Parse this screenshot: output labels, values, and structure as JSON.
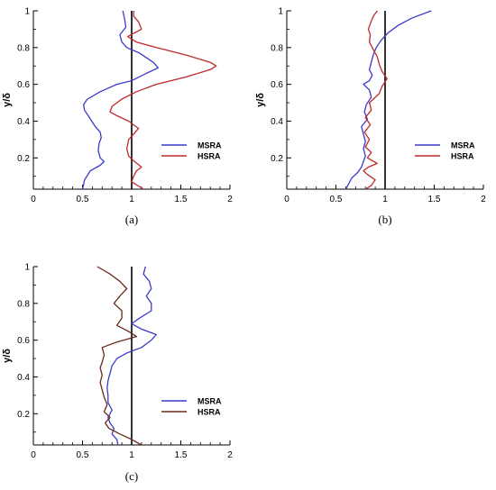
{
  "chart_data": [
    {
      "type": "line",
      "panel": "(a)",
      "ylabel": "y/δ",
      "xlim": [
        0,
        2
      ],
      "ylim": [
        0.03,
        1
      ],
      "xticks": [
        "0",
        "0.5",
        "1",
        "1.5",
        "2"
      ],
      "yticks": [
        "0.2",
        "0.4",
        "0.6",
        "0.8",
        "1"
      ],
      "vline_x": 1,
      "legend_position": "right-center",
      "series": [
        {
          "name": "MSRA",
          "color": "#3a3acc",
          "points": [
            [
              0.5,
              0.03
            ],
            [
              0.52,
              0.08
            ],
            [
              0.58,
              0.13
            ],
            [
              0.68,
              0.16
            ],
            [
              0.72,
              0.18
            ],
            [
              0.68,
              0.2
            ],
            [
              0.66,
              0.24
            ],
            [
              0.67,
              0.28
            ],
            [
              0.69,
              0.31
            ],
            [
              0.68,
              0.34
            ],
            [
              0.63,
              0.37
            ],
            [
              0.57,
              0.42
            ],
            [
              0.52,
              0.46
            ],
            [
              0.51,
              0.49
            ],
            [
              0.55,
              0.52
            ],
            [
              0.68,
              0.56
            ],
            [
              0.85,
              0.6
            ],
            [
              1.0,
              0.62
            ],
            [
              1.15,
              0.66
            ],
            [
              1.27,
              0.69
            ],
            [
              1.22,
              0.72
            ],
            [
              1.08,
              0.77
            ],
            [
              0.95,
              0.8
            ],
            [
              0.9,
              0.83
            ],
            [
              0.88,
              0.87
            ],
            [
              0.94,
              0.91
            ],
            [
              0.93,
              0.95
            ],
            [
              0.91,
              1.0
            ]
          ]
        },
        {
          "name": "HSRA",
          "color": "#c0282c",
          "points": [
            [
              1.12,
              0.03
            ],
            [
              1.0,
              0.07
            ],
            [
              1.02,
              0.1
            ],
            [
              1.05,
              0.13
            ],
            [
              1.1,
              0.15
            ],
            [
              1.03,
              0.18
            ],
            [
              0.97,
              0.21
            ],
            [
              0.95,
              0.25
            ],
            [
              0.97,
              0.3
            ],
            [
              1.02,
              0.33
            ],
            [
              1.07,
              0.36
            ],
            [
              0.97,
              0.4
            ],
            [
              0.85,
              0.43
            ],
            [
              0.78,
              0.45
            ],
            [
              0.8,
              0.48
            ],
            [
              0.9,
              0.52
            ],
            [
              1.05,
              0.56
            ],
            [
              1.25,
              0.6
            ],
            [
              1.55,
              0.64
            ],
            [
              1.8,
              0.68
            ],
            [
              1.86,
              0.7
            ],
            [
              1.8,
              0.72
            ],
            [
              1.55,
              0.76
            ],
            [
              1.25,
              0.8
            ],
            [
              1.05,
              0.83
            ],
            [
              0.96,
              0.86
            ],
            [
              1.1,
              0.9
            ],
            [
              1.07,
              0.94
            ],
            [
              1.02,
              0.97
            ],
            [
              1.02,
              1.0
            ]
          ]
        }
      ]
    },
    {
      "type": "line",
      "panel": "(b)",
      "ylabel": "y/δ",
      "xlim": [
        0,
        2
      ],
      "ylim": [
        0.03,
        1
      ],
      "xticks": [
        "0",
        "0.5",
        "1",
        "1.5",
        "2"
      ],
      "yticks": [
        "0.2",
        "0.4",
        "0.6",
        "0.8",
        "1"
      ],
      "vline_x": 1,
      "legend_position": "right-center",
      "series": [
        {
          "name": "MSRA",
          "color": "#3a3acc",
          "points": [
            [
              0.6,
              0.03
            ],
            [
              0.63,
              0.06
            ],
            [
              0.66,
              0.09
            ],
            [
              0.72,
              0.12
            ],
            [
              0.76,
              0.15
            ],
            [
              0.78,
              0.18
            ],
            [
              0.8,
              0.21
            ],
            [
              0.78,
              0.25
            ],
            [
              0.8,
              0.29
            ],
            [
              0.78,
              0.33
            ],
            [
              0.76,
              0.37
            ],
            [
              0.82,
              0.41
            ],
            [
              0.79,
              0.45
            ],
            [
              0.81,
              0.49
            ],
            [
              0.86,
              0.53
            ],
            [
              0.84,
              0.57
            ],
            [
              0.78,
              0.6
            ],
            [
              0.84,
              0.62
            ],
            [
              0.87,
              0.65
            ],
            [
              0.84,
              0.68
            ],
            [
              0.86,
              0.72
            ],
            [
              0.88,
              0.76
            ],
            [
              0.91,
              0.8
            ],
            [
              0.96,
              0.84
            ],
            [
              1.03,
              0.88
            ],
            [
              1.13,
              0.92
            ],
            [
              1.27,
              0.96
            ],
            [
              1.47,
              1.0
            ]
          ]
        },
        {
          "name": "HSRA",
          "color": "#c0282c",
          "points": [
            [
              0.8,
              0.03
            ],
            [
              0.86,
              0.05
            ],
            [
              0.9,
              0.08
            ],
            [
              0.82,
              0.11
            ],
            [
              0.78,
              0.13
            ],
            [
              0.83,
              0.15
            ],
            [
              0.92,
              0.17
            ],
            [
              0.82,
              0.2
            ],
            [
              0.86,
              0.23
            ],
            [
              0.8,
              0.26
            ],
            [
              0.84,
              0.3
            ],
            [
              0.79,
              0.34
            ],
            [
              0.85,
              0.38
            ],
            [
              0.8,
              0.42
            ],
            [
              0.86,
              0.46
            ],
            [
              0.84,
              0.5
            ],
            [
              0.94,
              0.55
            ],
            [
              0.97,
              0.59
            ],
            [
              1.02,
              0.63
            ],
            [
              0.97,
              0.67
            ],
            [
              0.94,
              0.71
            ],
            [
              0.92,
              0.75
            ],
            [
              0.88,
              0.79
            ],
            [
              0.84,
              0.83
            ],
            [
              0.85,
              0.87
            ],
            [
              0.83,
              0.9
            ],
            [
              0.85,
              0.93
            ],
            [
              0.88,
              0.97
            ],
            [
              0.92,
              1.0
            ]
          ]
        }
      ]
    },
    {
      "type": "line",
      "panel": "(c)",
      "ylabel": "y/δ",
      "xlim": [
        0,
        2
      ],
      "ylim": [
        0.03,
        1
      ],
      "xticks": [
        "0",
        "0.5",
        "1",
        "1.5",
        "2"
      ],
      "yticks": [
        "0.2",
        "0.4",
        "0.6",
        "0.8",
        "1"
      ],
      "vline_x": 1,
      "legend_position": "right-center",
      "series": [
        {
          "name": "MSRA",
          "color": "#3a3acc",
          "points": [
            [
              0.86,
              0.03
            ],
            [
              0.85,
              0.06
            ],
            [
              0.8,
              0.09
            ],
            [
              0.82,
              0.12
            ],
            [
              0.78,
              0.15
            ],
            [
              0.76,
              0.18
            ],
            [
              0.8,
              0.22
            ],
            [
              0.76,
              0.26
            ],
            [
              0.76,
              0.3
            ],
            [
              0.75,
              0.34
            ],
            [
              0.76,
              0.38
            ],
            [
              0.78,
              0.42
            ],
            [
              0.8,
              0.46
            ],
            [
              0.85,
              0.5
            ],
            [
              0.95,
              0.53
            ],
            [
              1.1,
              0.56
            ],
            [
              1.2,
              0.6
            ],
            [
              1.25,
              0.63
            ],
            [
              1.1,
              0.66
            ],
            [
              1.0,
              0.69
            ],
            [
              1.08,
              0.72
            ],
            [
              1.2,
              0.76
            ],
            [
              1.2,
              0.8
            ],
            [
              1.15,
              0.84
            ],
            [
              1.2,
              0.88
            ],
            [
              1.18,
              0.92
            ],
            [
              1.12,
              0.96
            ],
            [
              1.14,
              1.0
            ]
          ]
        },
        {
          "name": "HSRA",
          "color": "#6b2a1a",
          "points": [
            [
              1.1,
              0.03
            ],
            [
              1.0,
              0.06
            ],
            [
              0.88,
              0.09
            ],
            [
              0.77,
              0.12
            ],
            [
              0.73,
              0.15
            ],
            [
              0.78,
              0.18
            ],
            [
              0.72,
              0.21
            ],
            [
              0.75,
              0.25
            ],
            [
              0.72,
              0.29
            ],
            [
              0.7,
              0.33
            ],
            [
              0.68,
              0.37
            ],
            [
              0.7,
              0.41
            ],
            [
              0.68,
              0.45
            ],
            [
              0.7,
              0.48
            ],
            [
              0.72,
              0.52
            ],
            [
              0.7,
              0.56
            ],
            [
              0.85,
              0.59
            ],
            [
              1.05,
              0.62
            ],
            [
              0.96,
              0.65
            ],
            [
              0.85,
              0.68
            ],
            [
              0.9,
              0.72
            ],
            [
              0.9,
              0.76
            ],
            [
              0.82,
              0.8
            ],
            [
              0.88,
              0.84
            ],
            [
              0.95,
              0.88
            ],
            [
              0.88,
              0.92
            ],
            [
              0.78,
              0.96
            ],
            [
              0.65,
              1.0
            ]
          ]
        }
      ]
    }
  ]
}
